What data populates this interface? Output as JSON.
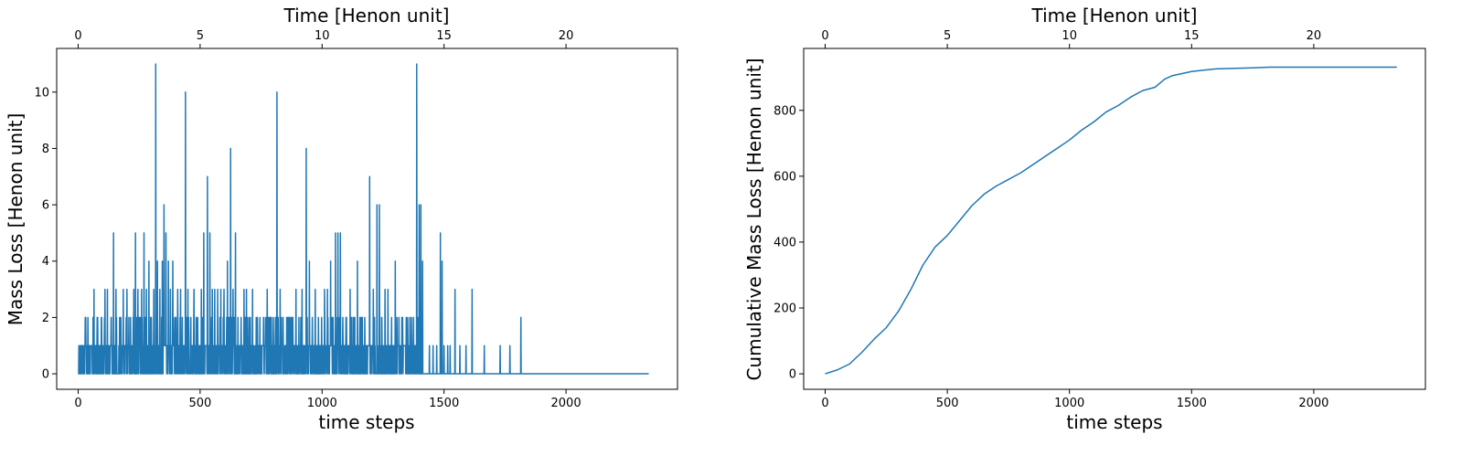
{
  "chart_data": [
    {
      "type": "line",
      "xlabel": "time steps",
      "ylabel": "Mass Loss [Henon unit]",
      "x2label": "Time [Henon unit]",
      "xlim": [
        -88,
        2457
      ],
      "ylim": [
        -0.55,
        11.55
      ],
      "x_ticks": [
        "0",
        "500",
        "1000",
        "1500",
        "2000"
      ],
      "y_ticks": [
        "0",
        "2",
        "4",
        "6",
        "8",
        "10"
      ],
      "x2_ticks": [
        "0",
        "5",
        "10",
        "15",
        "20"
      ],
      "x2_tick_steps": [
        0,
        500,
        1000,
        1500,
        2000
      ],
      "grid": false,
      "color": "#1f77b4",
      "n_steps": 2340,
      "noise_end": 1410,
      "spikes": [
        [
          15,
          1
        ],
        [
          30,
          1
        ],
        [
          40,
          2
        ],
        [
          55,
          1
        ],
        [
          65,
          3
        ],
        [
          80,
          2
        ],
        [
          95,
          2
        ],
        [
          110,
          3
        ],
        [
          120,
          3
        ],
        [
          135,
          2
        ],
        [
          145,
          5
        ],
        [
          155,
          3
        ],
        [
          170,
          2
        ],
        [
          185,
          3
        ],
        [
          200,
          3
        ],
        [
          215,
          2
        ],
        [
          228,
          3
        ],
        [
          235,
          5
        ],
        [
          245,
          3
        ],
        [
          255,
          2
        ],
        [
          260,
          3
        ],
        [
          270,
          5
        ],
        [
          280,
          3
        ],
        [
          290,
          4
        ],
        [
          300,
          2
        ],
        [
          310,
          3
        ],
        [
          318,
          11
        ],
        [
          325,
          4
        ],
        [
          335,
          3
        ],
        [
          345,
          4
        ],
        [
          352,
          6
        ],
        [
          360,
          5
        ],
        [
          370,
          4
        ],
        [
          378,
          3
        ],
        [
          388,
          4
        ],
        [
          398,
          2
        ],
        [
          408,
          3
        ],
        [
          420,
          3
        ],
        [
          440,
          10
        ],
        [
          450,
          3
        ],
        [
          462,
          2
        ],
        [
          475,
          3
        ],
        [
          490,
          2
        ],
        [
          505,
          3
        ],
        [
          515,
          5
        ],
        [
          530,
          7
        ],
        [
          540,
          5
        ],
        [
          550,
          3
        ],
        [
          560,
          3
        ],
        [
          572,
          3
        ],
        [
          585,
          3
        ],
        [
          598,
          3
        ],
        [
          612,
          4
        ],
        [
          625,
          8
        ],
        [
          635,
          3
        ],
        [
          645,
          5
        ],
        [
          655,
          2
        ],
        [
          668,
          2
        ],
        [
          680,
          3
        ],
        [
          690,
          3
        ],
        [
          700,
          2
        ],
        [
          715,
          3
        ],
        [
          730,
          2
        ],
        [
          745,
          2
        ],
        [
          760,
          2
        ],
        [
          775,
          3
        ],
        [
          788,
          2
        ],
        [
          800,
          2
        ],
        [
          815,
          10
        ],
        [
          828,
          3
        ],
        [
          840,
          2
        ],
        [
          855,
          2
        ],
        [
          868,
          2
        ],
        [
          880,
          2
        ],
        [
          893,
          3
        ],
        [
          905,
          2
        ],
        [
          918,
          3
        ],
        [
          935,
          8
        ],
        [
          948,
          4
        ],
        [
          960,
          2
        ],
        [
          972,
          3
        ],
        [
          985,
          2
        ],
        [
          998,
          2
        ],
        [
          1010,
          3
        ],
        [
          1022,
          3
        ],
        [
          1035,
          4
        ],
        [
          1045,
          2
        ],
        [
          1055,
          5
        ],
        [
          1065,
          5
        ],
        [
          1075,
          5
        ],
        [
          1085,
          2
        ],
        [
          1100,
          2
        ],
        [
          1115,
          3
        ],
        [
          1130,
          2
        ],
        [
          1145,
          4
        ],
        [
          1160,
          2
        ],
        [
          1175,
          2
        ],
        [
          1195,
          7
        ],
        [
          1210,
          3
        ],
        [
          1225,
          6
        ],
        [
          1235,
          6
        ],
        [
          1245,
          2
        ],
        [
          1258,
          3
        ],
        [
          1270,
          3
        ],
        [
          1285,
          2
        ],
        [
          1300,
          4
        ],
        [
          1315,
          2
        ],
        [
          1330,
          2
        ],
        [
          1345,
          2
        ],
        [
          1360,
          2
        ],
        [
          1375,
          2
        ],
        [
          1388,
          11
        ],
        [
          1398,
          6
        ],
        [
          1405,
          6
        ],
        [
          1412,
          4
        ],
        [
          1440,
          1
        ],
        [
          1455,
          1
        ],
        [
          1470,
          1
        ],
        [
          1485,
          5
        ],
        [
          1492,
          4
        ],
        [
          1500,
          1
        ],
        [
          1515,
          1
        ],
        [
          1525,
          1
        ],
        [
          1545,
          3
        ],
        [
          1565,
          1
        ],
        [
          1590,
          1
        ],
        [
          1615,
          3
        ],
        [
          1665,
          1
        ],
        [
          1730,
          1
        ],
        [
          1770,
          1
        ],
        [
          1815,
          2
        ]
      ]
    },
    {
      "type": "line",
      "xlabel": "time steps",
      "ylabel": "Cumulative Mass Loss [Henon unit]",
      "x2label": "Time [Henon unit]",
      "xlim": [
        -88,
        2457
      ],
      "ylim": [
        -47,
        988
      ],
      "x_ticks": [
        "0",
        "500",
        "1000",
        "1500",
        "2000"
      ],
      "y_ticks": [
        "0",
        "200",
        "400",
        "600",
        "800"
      ],
      "x2_ticks": [
        "0",
        "5",
        "10",
        "15",
        "20"
      ],
      "x2_tick_steps": [
        0,
        500,
        1000,
        1500,
        2000
      ],
      "grid": false,
      "color": "#1f77b4",
      "points": [
        [
          0,
          0
        ],
        [
          50,
          12
        ],
        [
          100,
          30
        ],
        [
          150,
          65
        ],
        [
          200,
          105
        ],
        [
          250,
          140
        ],
        [
          300,
          190
        ],
        [
          350,
          255
        ],
        [
          400,
          330
        ],
        [
          450,
          385
        ],
        [
          500,
          420
        ],
        [
          550,
          465
        ],
        [
          600,
          510
        ],
        [
          650,
          545
        ],
        [
          700,
          570
        ],
        [
          750,
          590
        ],
        [
          800,
          610
        ],
        [
          850,
          635
        ],
        [
          900,
          660
        ],
        [
          950,
          685
        ],
        [
          1000,
          710
        ],
        [
          1050,
          740
        ],
        [
          1100,
          765
        ],
        [
          1150,
          795
        ],
        [
          1200,
          815
        ],
        [
          1250,
          840
        ],
        [
          1300,
          860
        ],
        [
          1350,
          870
        ],
        [
          1390,
          895
        ],
        [
          1420,
          905
        ],
        [
          1450,
          910
        ],
        [
          1500,
          918
        ],
        [
          1550,
          922
        ],
        [
          1600,
          926
        ],
        [
          1650,
          927
        ],
        [
          1700,
          928
        ],
        [
          1750,
          929
        ],
        [
          1820,
          931
        ],
        [
          1900,
          931
        ],
        [
          2000,
          931
        ],
        [
          2100,
          931
        ],
        [
          2200,
          931
        ],
        [
          2340,
          931
        ]
      ]
    }
  ]
}
